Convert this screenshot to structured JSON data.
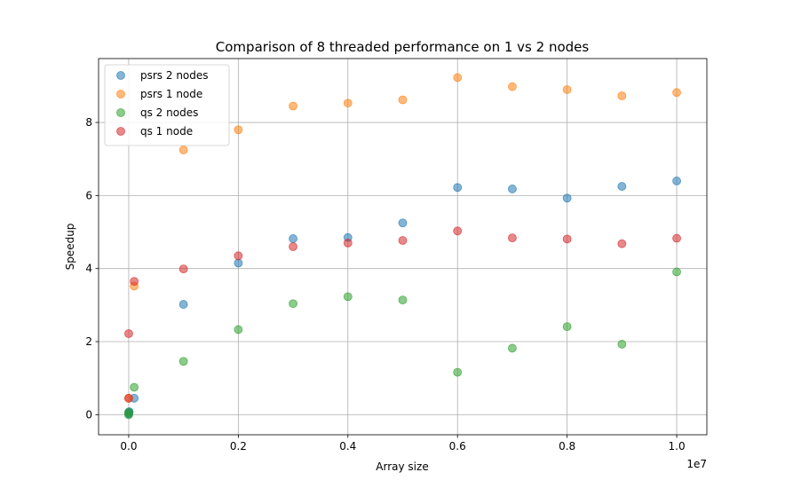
{
  "chart_data": {
    "type": "scatter",
    "title": "Comparison of 8 threaded performance on 1 vs 2 nodes",
    "xlabel": "Array size",
    "ylabel": "Speedup",
    "x_offset_label": "1e7",
    "xlim": [
      -0.055,
      1.055
    ],
    "ylim": [
      -0.55,
      9.75
    ],
    "xticks": [
      0.0,
      0.2,
      0.4,
      0.6,
      0.8,
      1.0
    ],
    "xtick_labels": [
      "0.0",
      "0.2",
      "0.4",
      "0.6",
      "0.8",
      "1.0"
    ],
    "yticks": [
      0,
      2,
      4,
      6,
      8
    ],
    "ytick_labels": [
      "0",
      "2",
      "4",
      "6",
      "8"
    ],
    "grid": true,
    "legend_position": "top-left",
    "series": [
      {
        "name": "psrs 2 nodes",
        "color": "#1f77b4",
        "points": [
          [
            0.0,
            0.02
          ],
          [
            0.0,
            0.05
          ],
          [
            0.001,
            0.08
          ],
          [
            0.01,
            0.45
          ],
          [
            0.1,
            3.02
          ],
          [
            0.2,
            4.15
          ],
          [
            0.3,
            4.82
          ],
          [
            0.4,
            4.85
          ],
          [
            0.5,
            5.25
          ],
          [
            0.6,
            6.22
          ],
          [
            0.7,
            6.18
          ],
          [
            0.8,
            5.93
          ],
          [
            0.9,
            6.25
          ],
          [
            1.0,
            6.4
          ]
        ]
      },
      {
        "name": "psrs 1 node",
        "color": "#ff7f0e",
        "points": [
          [
            0.0,
            0.45
          ],
          [
            0.01,
            3.52
          ],
          [
            0.1,
            7.25
          ],
          [
            0.2,
            7.8
          ],
          [
            0.3,
            8.45
          ],
          [
            0.4,
            8.53
          ],
          [
            0.5,
            8.62
          ],
          [
            0.6,
            9.23
          ],
          [
            0.7,
            8.98
          ],
          [
            0.8,
            8.9
          ],
          [
            0.9,
            8.73
          ],
          [
            1.0,
            8.82
          ]
        ]
      },
      {
        "name": "qs 2 nodes",
        "color": "#2ca02c",
        "points": [
          [
            0.0,
            0.0
          ],
          [
            0.0,
            0.07
          ],
          [
            0.01,
            0.75
          ],
          [
            0.1,
            1.46
          ],
          [
            0.2,
            2.33
          ],
          [
            0.3,
            3.04
          ],
          [
            0.4,
            3.23
          ],
          [
            0.5,
            3.14
          ],
          [
            0.6,
            1.16
          ],
          [
            0.7,
            1.82
          ],
          [
            0.8,
            2.41
          ],
          [
            0.9,
            1.93
          ],
          [
            1.0,
            3.91
          ]
        ]
      },
      {
        "name": "qs 1 node",
        "color": "#d62728",
        "points": [
          [
            0.0,
            0.45
          ],
          [
            0.0,
            2.22
          ],
          [
            0.01,
            3.65
          ],
          [
            0.1,
            3.99
          ],
          [
            0.2,
            4.35
          ],
          [
            0.3,
            4.6
          ],
          [
            0.4,
            4.7
          ],
          [
            0.5,
            4.77
          ],
          [
            0.6,
            5.03
          ],
          [
            0.7,
            4.84
          ],
          [
            0.8,
            4.81
          ],
          [
            0.9,
            4.68
          ],
          [
            1.0,
            4.83
          ]
        ]
      }
    ]
  }
}
